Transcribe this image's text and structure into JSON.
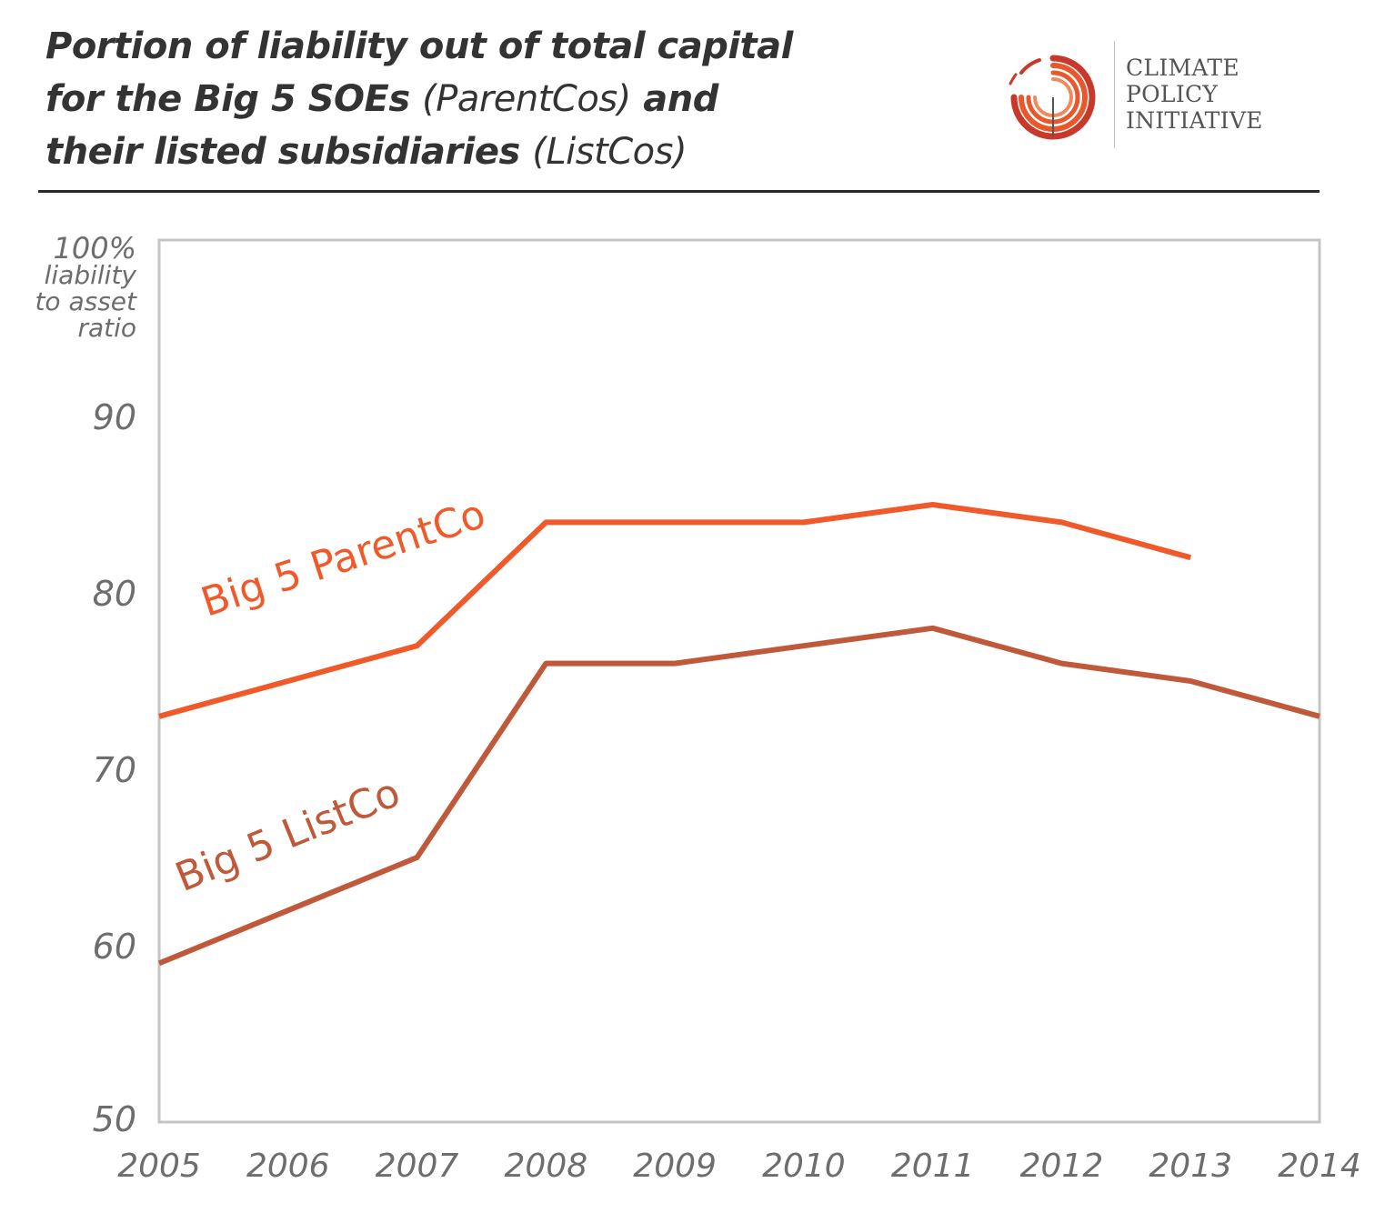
{
  "title": {
    "line1": "Portion of liability out of total capital",
    "line2_bold": "for the Big 5 SOEs",
    "line2_paren": "(ParentCos)",
    "line2_end": "and",
    "line3_bold": "their listed subsidiaries",
    "line3_paren": "(ListCos)"
  },
  "logo": {
    "line1": "CLIMATE",
    "line2": "POLICY",
    "line3": "INITIATIVE",
    "icon": "climate-policy-initiative-logo-icon",
    "colors": [
      "#c8392b",
      "#e8582d"
    ]
  },
  "chart_data": {
    "type": "line",
    "x": [
      "2005",
      "2006",
      "2007",
      "2008",
      "2009",
      "2010",
      "2011",
      "2012",
      "2013",
      "2014"
    ],
    "ylim": [
      50,
      100
    ],
    "yticks": [
      "50",
      "60",
      "70",
      "80",
      "90",
      "100%"
    ],
    "ylabel": "liability to asset ratio",
    "grid": false,
    "series": [
      {
        "name": "Big 5 ParentCo",
        "color": "#f05a2a",
        "values": [
          73,
          75,
          77,
          84,
          84,
          84,
          85,
          84,
          82,
          null
        ]
      },
      {
        "name": "Big 5 ListCo",
        "color": "#c0583a",
        "values": [
          59,
          62,
          65,
          76,
          76,
          77,
          78,
          76,
          75,
          73
        ]
      }
    ]
  }
}
